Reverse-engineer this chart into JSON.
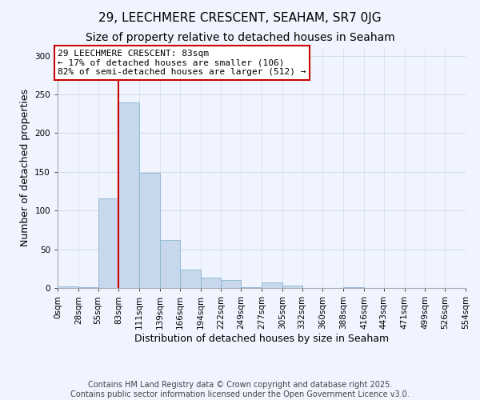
{
  "title": "29, LEECHMERE CRESCENT, SEAHAM, SR7 0JG",
  "subtitle": "Size of property relative to detached houses in Seaham",
  "xlabel": "Distribution of detached houses by size in Seaham",
  "ylabel": "Number of detached properties",
  "bar_color": "#c8d8ec",
  "bar_edge_color": "#8ab4d0",
  "marker_value": 83,
  "marker_color": "#cc0000",
  "bin_edges": [
    0,
    28,
    55,
    83,
    111,
    139,
    166,
    194,
    222,
    249,
    277,
    305,
    332,
    360,
    388,
    416,
    443,
    471,
    499,
    526,
    554
  ],
  "bar_heights": [
    2,
    1,
    116,
    240,
    149,
    62,
    24,
    13,
    10,
    1,
    7,
    3,
    0,
    0,
    1,
    0,
    0,
    0,
    0,
    0
  ],
  "tick_labels": [
    "0sqm",
    "28sqm",
    "55sqm",
    "83sqm",
    "111sqm",
    "139sqm",
    "166sqm",
    "194sqm",
    "222sqm",
    "249sqm",
    "277sqm",
    "305sqm",
    "332sqm",
    "360sqm",
    "388sqm",
    "416sqm",
    "443sqm",
    "471sqm",
    "499sqm",
    "526sqm",
    "554sqm"
  ],
  "ylim": [
    0,
    310
  ],
  "yticks": [
    0,
    50,
    100,
    150,
    200,
    250,
    300
  ],
  "annotation_title": "29 LEECHMERE CRESCENT: 83sqm",
  "annotation_line1": "← 17% of detached houses are smaller (106)",
  "annotation_line2": "82% of semi-detached houses are larger (512) →",
  "annotation_box_color": "#ffffff",
  "annotation_box_edge": "#cc0000",
  "footer_line1": "Contains HM Land Registry data © Crown copyright and database right 2025.",
  "footer_line2": "Contains public sector information licensed under the Open Government Licence v3.0.",
  "background_color": "#f0f4ff",
  "grid_color": "#d4dce8",
  "title_fontsize": 11,
  "subtitle_fontsize": 10,
  "axis_label_fontsize": 9,
  "tick_fontsize": 7.5,
  "annotation_fontsize": 8,
  "footer_fontsize": 7
}
